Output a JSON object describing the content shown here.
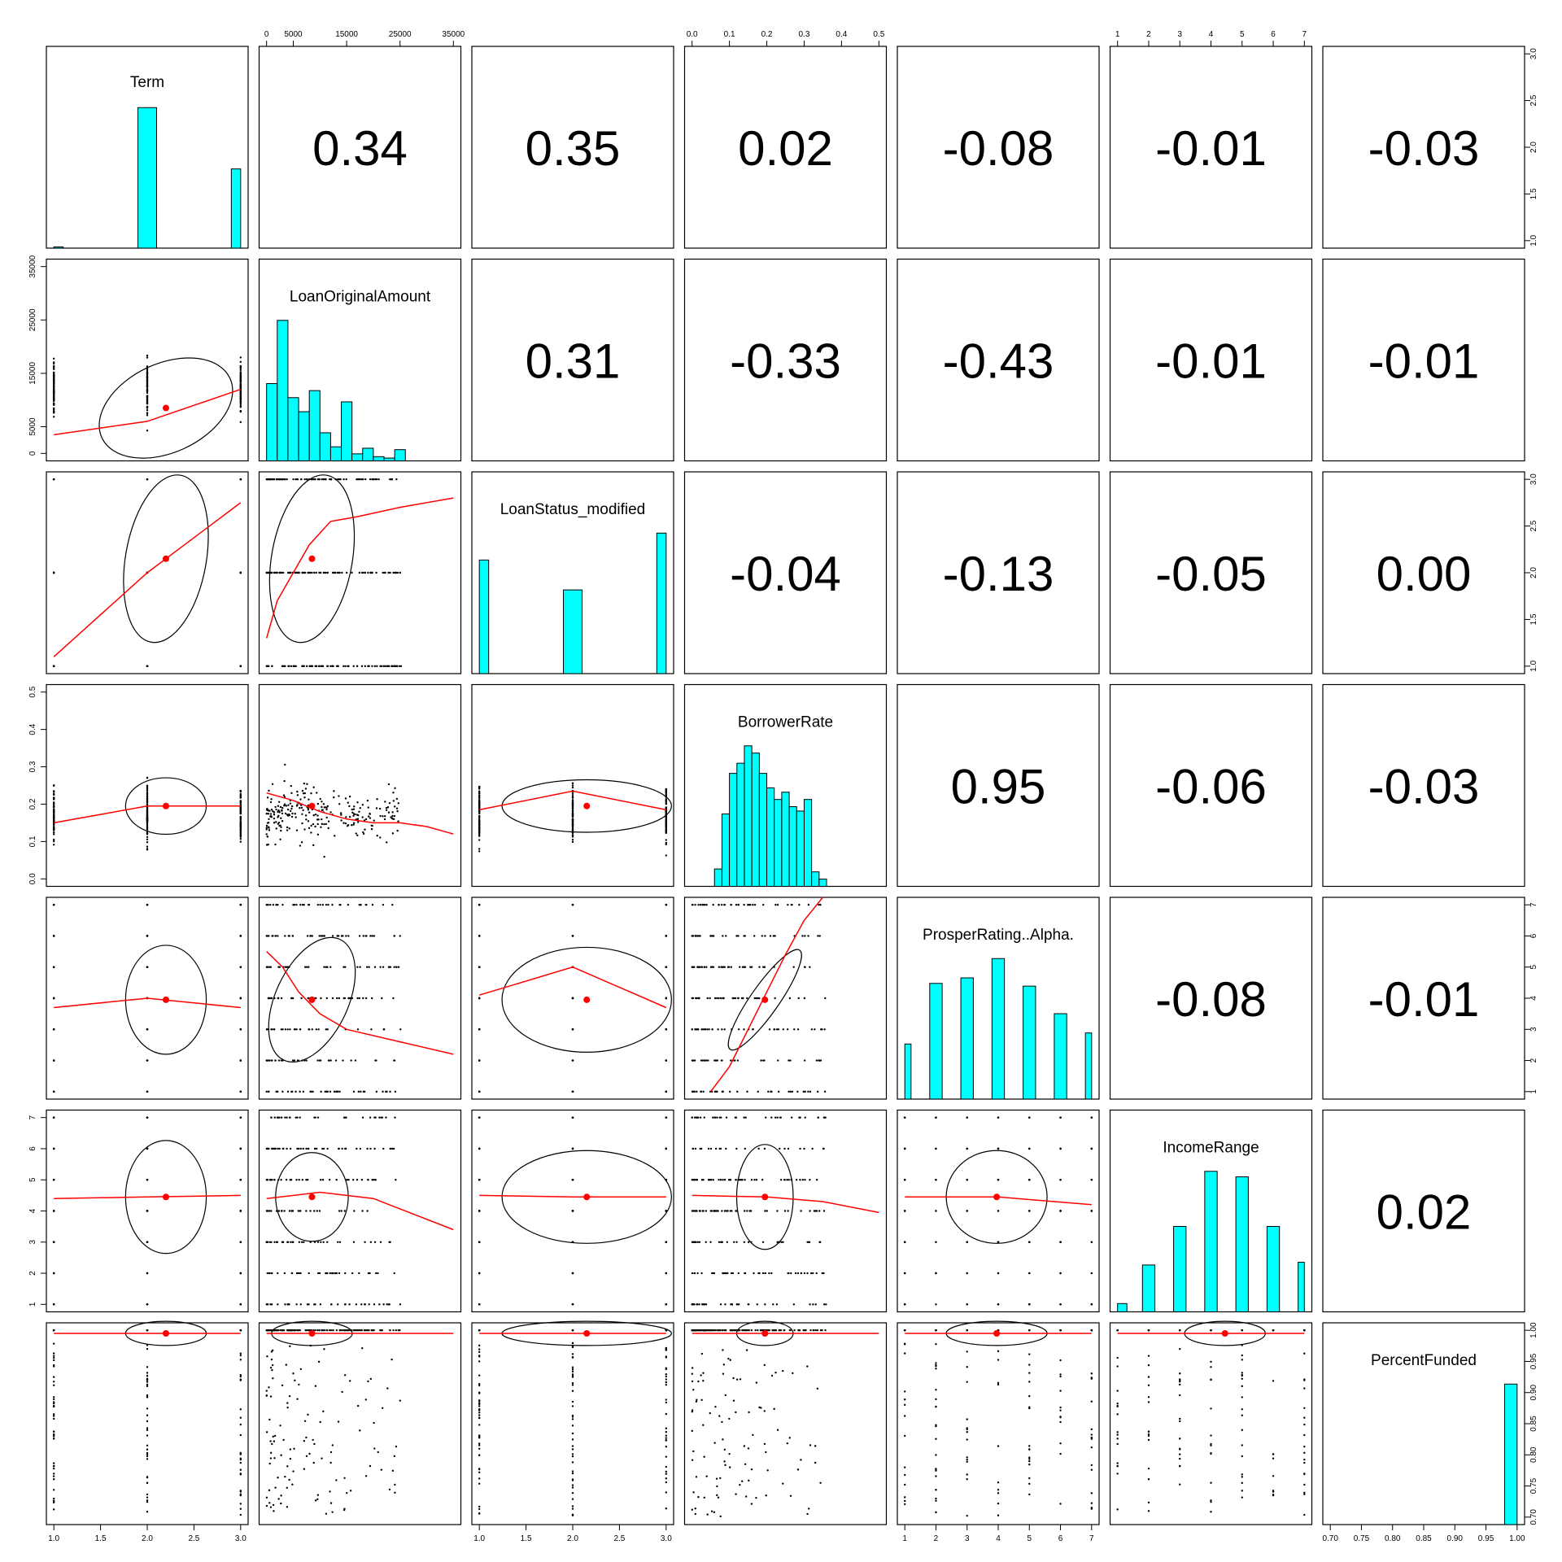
{
  "chart_data": {
    "type": "pairs_panels",
    "variables": [
      "Term",
      "LoanOriginalAmount",
      "LoanStatus_modified",
      "BorrowerRate",
      "ProsperRating..Alpha.",
      "IncomeRange",
      "PercentFunded"
    ],
    "correlations": [
      [
        null,
        "0.34",
        "0.35",
        "0.02",
        "-0.08",
        "-0.01",
        "-0.03"
      ],
      [
        null,
        null,
        "0.31",
        "-0.33",
        "-0.43",
        "-0.01",
        "-0.01"
      ],
      [
        null,
        null,
        null,
        "-0.04",
        "-0.13",
        "-0.05",
        "0.00"
      ],
      [
        null,
        null,
        null,
        null,
        "0.95",
        "-0.06",
        "-0.03"
      ],
      [
        null,
        null,
        null,
        null,
        null,
        "-0.08",
        "-0.01"
      ],
      [
        null,
        null,
        null,
        null,
        null,
        null,
        "0.02"
      ],
      [
        null,
        null,
        null,
        null,
        null,
        null,
        null
      ]
    ],
    "ranges": [
      [
        1,
        3
      ],
      [
        0,
        35000
      ],
      [
        1,
        3
      ],
      [
        0,
        0.5
      ],
      [
        1,
        7
      ],
      [
        1,
        7
      ],
      [
        0.7,
        1.0
      ]
    ],
    "ticks": [
      [
        "1.0",
        "1.5",
        "2.0",
        "2.5",
        "3.0"
      ],
      [
        "0",
        "5000",
        "15000",
        "25000",
        "35000"
      ],
      [
        "1.0",
        "1.5",
        "2.0",
        "2.5",
        "3.0"
      ],
      [
        "0.0",
        "0.1",
        "0.2",
        "0.3",
        "0.4",
        "0.5"
      ],
      [
        "1",
        "2",
        "3",
        "4",
        "5",
        "6",
        "7"
      ],
      [
        "1",
        "2",
        "3",
        "4",
        "5",
        "6",
        "7"
      ],
      [
        "0.70",
        "0.75",
        "0.80",
        "0.85",
        "0.90",
        "0.95",
        "1.00"
      ]
    ],
    "means": [
      2.2,
      8500,
      2.15,
      0.195,
      3.95,
      4.45,
      0.995
    ],
    "histograms": [
      {
        "bins": [
          1,
          1.1,
          1.9,
          2.1,
          2.9,
          3.0
        ],
        "values": [
          0.02,
          0,
          2.36,
          0,
          1.33
        ]
      },
      {
        "bins": [
          0,
          2000,
          4000,
          6000,
          8000,
          10000,
          12000,
          14000,
          16000,
          18000,
          20000,
          22000,
          24000,
          26000
        ],
        "values": [
          0.55,
          1.0,
          0.45,
          0.35,
          0.5,
          0.2,
          0.1,
          0.42,
          0.05,
          0.09,
          0.03,
          0.02,
          0.08
        ]
      },
      {
        "bins": [
          1,
          1.1,
          1.9,
          2.1,
          2.9,
          3.0
        ],
        "values": [
          1.9,
          0,
          1.4,
          0,
          2.35
        ]
      },
      {
        "bins": [
          0.06,
          0.08,
          0.1,
          0.12,
          0.14,
          0.16,
          0.18,
          0.2,
          0.22,
          0.24,
          0.26,
          0.28,
          0.3,
          0.32,
          0.34,
          0.36
        ],
        "values": [
          0.12,
          0.5,
          0.78,
          0.85,
          0.97,
          0.92,
          0.78,
          0.68,
          0.6,
          0.65,
          0.55,
          0.52,
          0.6,
          0.1,
          0.05
        ]
      },
      {
        "bins": [
          1.0,
          1.2,
          1.8,
          2.2,
          2.8,
          3.2,
          3.8,
          4.2,
          4.8,
          5.2,
          5.8,
          6.2,
          6.8,
          7.0
        ],
        "values": [
          2.0,
          0,
          4.2,
          0,
          4.4,
          0,
          5.1,
          0,
          4.1,
          0,
          3.1,
          0,
          2.4
        ]
      },
      {
        "bins": [
          1.0,
          1.3,
          1.8,
          2.2,
          2.8,
          3.2,
          3.8,
          4.2,
          4.8,
          5.2,
          5.8,
          6.2,
          6.8,
          7.0
        ],
        "values": [
          0.3,
          0,
          1.7,
          0,
          3.1,
          0,
          5.1,
          0,
          4.9,
          0,
          3.1,
          0,
          1.8
        ]
      },
      {
        "bins": [
          0.7,
          0.98,
          1.0
        ],
        "values": [
          0,
          0.93
        ]
      }
    ],
    "ellipses": [
      [
        null,
        null,
        null,
        null,
        null,
        null,
        null
      ],
      [
        {
          "rx": 0.35,
          "ry": 0.22,
          "rot": -25
        },
        null,
        null,
        null,
        null,
        null,
        null
      ],
      [
        {
          "rx": 0.2,
          "ry": 0.42,
          "rot": 10
        },
        {
          "rx": 0.2,
          "ry": 0.42,
          "rot": 10
        },
        null,
        null,
        null,
        null,
        null
      ],
      [
        {
          "rx": 0.2,
          "ry": 0.14,
          "rot": 0
        },
        null,
        {
          "rx": 0.42,
          "ry": 0.13,
          "rot": 0
        },
        null,
        null,
        null,
        null
      ],
      [
        {
          "rx": 0.2,
          "ry": 0.27,
          "rot": 0
        },
        {
          "rx": 0.18,
          "ry": 0.33,
          "rot": 25
        },
        {
          "rx": 0.42,
          "ry": 0.26,
          "rot": 0
        },
        {
          "rx": 0.07,
          "ry": 0.3,
          "rot": 35
        },
        null,
        null,
        null
      ],
      [
        {
          "rx": 0.2,
          "ry": 0.28,
          "rot": 0
        },
        {
          "rx": 0.18,
          "ry": 0.22,
          "rot": 0
        },
        {
          "rx": 0.42,
          "ry": 0.23,
          "rot": 0
        },
        {
          "rx": 0.14,
          "ry": 0.26,
          "rot": 0
        },
        {
          "rx": 0.25,
          "ry": 0.23,
          "rot": 0
        },
        null,
        null
      ],
      [
        {
          "rx": 0.2,
          "ry": 0.06,
          "rot": 0
        },
        {
          "rx": 0.2,
          "ry": 0.06,
          "rot": 0
        },
        {
          "rx": 0.42,
          "ry": 0.06,
          "rot": 0
        },
        {
          "rx": 0.14,
          "ry": 0.06,
          "rot": 0
        },
        {
          "rx": 0.25,
          "ry": 0.06,
          "rot": 0
        },
        {
          "rx": 0.2,
          "ry": 0.06,
          "rot": 0
        },
        null
      ]
    ],
    "smooth": [
      [
        null,
        null,
        null,
        null,
        null,
        null,
        null
      ],
      [
        [
          [
            1,
            3500
          ],
          [
            2,
            6000
          ],
          [
            3,
            12000
          ]
        ],
        null,
        null,
        null,
        null,
        null,
        null
      ],
      [
        [
          [
            1,
            1.1
          ],
          [
            2,
            2.0
          ],
          [
            3,
            2.75
          ]
        ],
        [
          [
            0,
            1.3
          ],
          [
            2000,
            1.7
          ],
          [
            5000,
            2.0
          ],
          [
            8000,
            2.3
          ],
          [
            12000,
            2.55
          ],
          [
            17000,
            2.6
          ],
          [
            25000,
            2.7
          ],
          [
            35000,
            2.8
          ]
        ],
        null,
        null,
        null,
        null,
        null
      ],
      [
        [
          [
            1,
            0.15
          ],
          [
            2,
            0.195
          ],
          [
            3,
            0.195
          ]
        ],
        [
          [
            0,
            0.23
          ],
          [
            5000,
            0.21
          ],
          [
            10000,
            0.18
          ],
          [
            15000,
            0.16
          ],
          [
            20000,
            0.15
          ],
          [
            25000,
            0.15
          ],
          [
            30000,
            0.14
          ],
          [
            35000,
            0.12
          ]
        ],
        [
          [
            1,
            0.185
          ],
          [
            2,
            0.235
          ],
          [
            3,
            0.185
          ]
        ],
        null,
        null,
        null,
        null
      ],
      [
        [
          [
            1,
            3.7
          ],
          [
            2,
            4.0
          ],
          [
            3,
            3.7
          ]
        ],
        [
          [
            0,
            5.5
          ],
          [
            3000,
            5.0
          ],
          [
            6000,
            4.2
          ],
          [
            10000,
            3.5
          ],
          [
            15000,
            3.0
          ],
          [
            25000,
            2.6
          ],
          [
            35000,
            2.2
          ]
        ],
        [
          [
            1,
            4.1
          ],
          [
            2,
            5.0
          ],
          [
            3,
            3.7
          ]
        ],
        [
          [
            0.05,
            1.0
          ],
          [
            0.1,
            1.8
          ],
          [
            0.15,
            3.0
          ],
          [
            0.2,
            4.2
          ],
          [
            0.25,
            5.4
          ],
          [
            0.3,
            6.5
          ],
          [
            0.35,
            7.5
          ]
        ],
        null,
        null,
        null
      ],
      [
        [
          [
            1,
            4.4
          ],
          [
            2,
            4.45
          ],
          [
            3,
            4.5
          ]
        ],
        [
          [
            0,
            4.4
          ],
          [
            10000,
            4.6
          ],
          [
            20000,
            4.4
          ],
          [
            35000,
            3.4
          ]
        ],
        [
          [
            1,
            4.5
          ],
          [
            2,
            4.45
          ],
          [
            3,
            4.45
          ]
        ],
        [
          [
            0.0,
            4.5
          ],
          [
            0.2,
            4.45
          ],
          [
            0.35,
            4.3
          ],
          [
            0.5,
            3.95
          ]
        ],
        [
          [
            1,
            4.45
          ],
          [
            4,
            4.45
          ],
          [
            7,
            4.2
          ]
        ],
        null,
        null
      ],
      [
        [
          [
            1,
            0.995
          ],
          [
            3,
            0.995
          ]
        ],
        [
          [
            0,
            0.995
          ],
          [
            35000,
            0.995
          ]
        ],
        [
          [
            1,
            0.995
          ],
          [
            3,
            0.995
          ]
        ],
        [
          [
            0,
            0.995
          ],
          [
            0.5,
            0.995
          ]
        ],
        [
          [
            1,
            0.995
          ],
          [
            7,
            0.995
          ]
        ],
        [
          [
            1,
            0.995
          ],
          [
            7,
            0.995
          ]
        ],
        null
      ]
    ],
    "discrete": [
      true,
      false,
      true,
      false,
      true,
      true,
      false
    ],
    "title": "",
    "xlabel": "",
    "ylabel": ""
  },
  "style": {
    "hist_fill": "#00FFFF",
    "smooth_color": "#FF0000",
    "mean_color": "#FF0000",
    "point_color": "#000000"
  }
}
